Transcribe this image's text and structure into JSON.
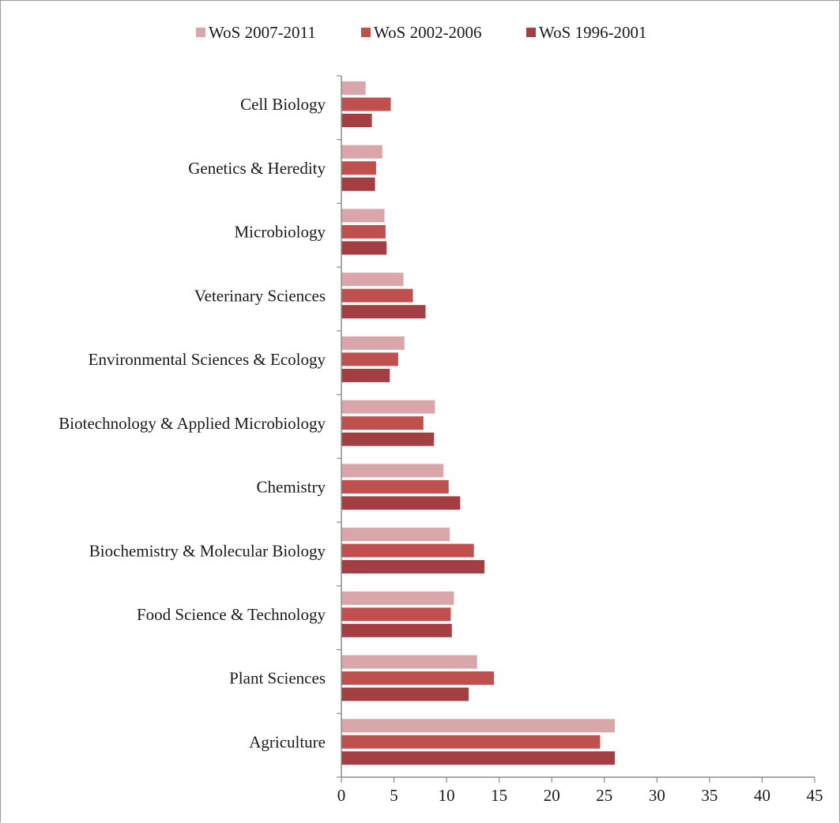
{
  "chart_data": {
    "type": "bar",
    "orientation": "horizontal",
    "categories": [
      "Cell Biology",
      "Genetics & Heredity",
      "Microbiology",
      "Veterinary Sciences",
      "Environmental Sciences & Ecology",
      "Biotechnology & Applied Microbiology",
      "Chemistry",
      "Biochemistry & Molecular Biology",
      "Food Science & Technology",
      "Plant Sciences",
      "Agriculture"
    ],
    "series": [
      {
        "name": "WoS 2007-2011",
        "color": "#d9a7aa",
        "values": [
          2.3,
          3.9,
          4.1,
          5.9,
          6.0,
          8.9,
          9.7,
          10.3,
          10.7,
          12.9,
          26.0
        ]
      },
      {
        "name": "WoS 2002-2006",
        "color": "#c0504d",
        "values": [
          4.7,
          3.3,
          4.2,
          6.8,
          5.4,
          7.8,
          10.2,
          12.6,
          10.4,
          14.5,
          24.6
        ]
      },
      {
        "name": "WoS 1996-2001",
        "color": "#a33f43",
        "values": [
          2.9,
          3.2,
          4.3,
          8.0,
          4.6,
          8.8,
          11.3,
          13.6,
          10.5,
          12.1,
          26.0
        ]
      }
    ],
    "xlim": [
      0,
      45
    ],
    "xticks": [
      "0",
      "5",
      "10",
      "15",
      "20",
      "25",
      "30",
      "35",
      "40",
      "45"
    ],
    "legend_position": "top",
    "grid": false
  }
}
